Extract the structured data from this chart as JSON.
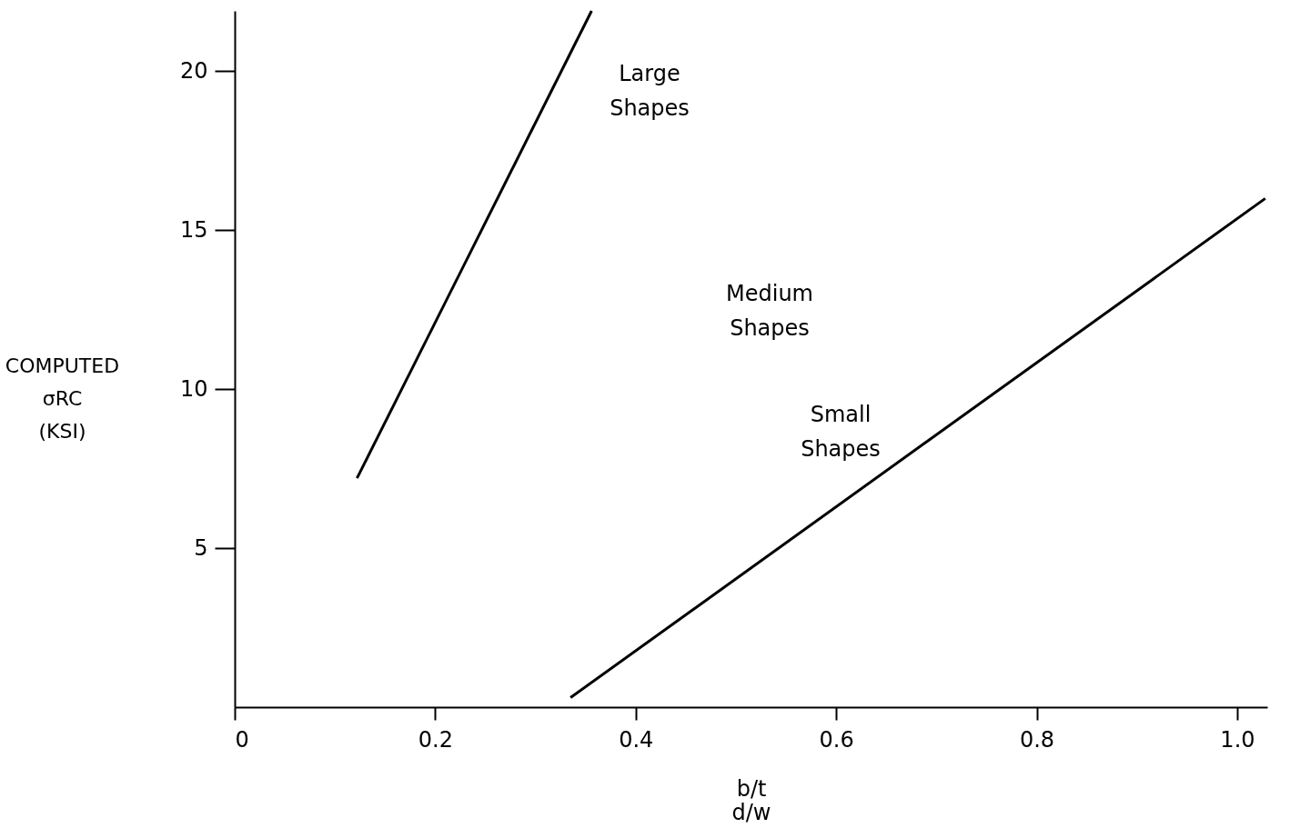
{
  "chart_data": {
    "type": "line",
    "xlabel": "b/t\nd/w",
    "ylabel": "COMPUTED\nσRC\n(KSI)",
    "series": [
      {
        "color": "#000000",
        "x": [
          0.122,
          0.356
        ],
        "values": [
          7.2,
          21.9
        ]
      },
      {
        "color": "#000000",
        "x": [
          0.335,
          1.028
        ],
        "values": [
          0.3,
          16.0
        ]
      }
    ],
    "annotations": [
      "Large\nShapes",
      "Medium\nShapes",
      "Small\nShapes"
    ],
    "xlim": [
      0,
      1.03
    ],
    "ylim": [
      0,
      21.9
    ],
    "xticks": [
      0,
      0.2,
      0.4,
      0.6,
      0.8,
      {
        "value": 1.0,
        "label": "1.0"
      }
    ],
    "yticks": [
      5,
      10,
      15,
      20
    ],
    "marker": "none",
    "line_style": "solid"
  }
}
